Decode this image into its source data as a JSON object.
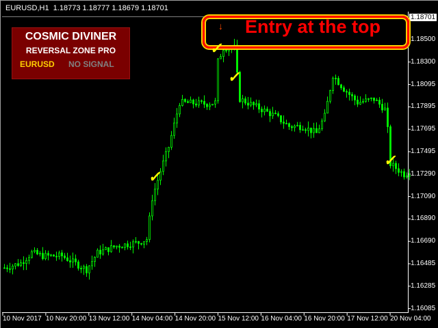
{
  "header": {
    "title": "EURUSD,H1  1.18773 1.18777 1.18679 1.18701"
  },
  "panel": {
    "title": "COSMIC DIVINER",
    "subtitle": "REVERSAL ZONE PRO",
    "symbol": "EURUSD",
    "signal": "NO SIGNAL",
    "symbol_color": "#ffd000",
    "signal_color": "#808080"
  },
  "entry": {
    "text": "Entry at the top",
    "arrow": "↓",
    "arrow_icon": "down-arrow-icon",
    "check_icon": "checkmark-icon"
  },
  "price_axis": {
    "current": "1.18701",
    "labels": [
      "1.18500",
      "1.18300",
      "1.18095",
      "1.17895",
      "1.17695",
      "1.17495",
      "1.17290",
      "1.17090",
      "1.16890",
      "1.16690",
      "1.16485",
      "1.16285",
      "1.16085"
    ]
  },
  "time_axis": {
    "labels": [
      "10 Nov 2017",
      "10 Nov 20:00",
      "13 Nov 12:00",
      "14 Nov 04:00",
      "14 Nov 20:00",
      "15 Nov 12:00",
      "16 Nov 04:00",
      "16 Nov 20:00",
      "17 Nov 12:00",
      "20 Nov 04:00"
    ]
  },
  "chart_data": {
    "type": "candlestick",
    "candle_color": "#00ff00",
    "ylim": [
      1.16085,
      1.18701
    ],
    "close_path": [
      [
        0,
        1.16464
      ],
      [
        6,
        1.16506
      ],
      [
        10,
        1.16598
      ],
      [
        14,
        1.1657
      ],
      [
        21,
        1.1657
      ],
      [
        30,
        1.16448
      ],
      [
        34,
        1.16598
      ],
      [
        41,
        1.16659
      ],
      [
        49,
        1.1669
      ],
      [
        52,
        1.1672
      ],
      [
        54,
        1.17085
      ],
      [
        57,
        1.17329
      ],
      [
        60,
        1.17543
      ],
      [
        64,
        1.17939
      ],
      [
        74,
        1.17927
      ],
      [
        77,
        1.17939
      ],
      [
        78,
        1.18305
      ],
      [
        80,
        1.18427
      ],
      [
        84,
        1.18427
      ],
      [
        85,
        1.18183
      ],
      [
        86,
        1.1797
      ],
      [
        94,
        1.17878
      ],
      [
        99,
        1.17817
      ],
      [
        104,
        1.17726
      ],
      [
        109,
        1.17726
      ],
      [
        114,
        1.17665
      ],
      [
        117,
        1.17817
      ],
      [
        120,
        1.18183
      ],
      [
        124,
        1.18061
      ],
      [
        129,
        1.17939
      ],
      [
        135,
        1.1797
      ],
      [
        139,
        1.17878
      ],
      [
        140,
        1.17695
      ],
      [
        141,
        1.1739
      ],
      [
        146,
        1.17299
      ],
      [
        148,
        1.17317
      ]
    ]
  }
}
